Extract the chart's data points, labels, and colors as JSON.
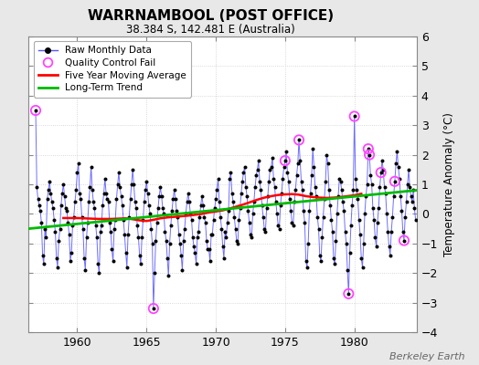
{
  "title": "WARRNAMBOOL (POST OFFICE)",
  "subtitle": "38.384 S, 142.481 E (Australia)",
  "ylabel": "Temperature Anomaly (°C)",
  "attribution": "Berkeley Earth",
  "xlim": [
    1956.5,
    1984.5
  ],
  "ylim": [
    -4,
    6
  ],
  "yticks": [
    -4,
    -3,
    -2,
    -1,
    0,
    1,
    2,
    3,
    4,
    5,
    6
  ],
  "xticks": [
    1960,
    1965,
    1970,
    1975,
    1980
  ],
  "bg_color": "#e8e8e8",
  "plot_bg_color": "#ffffff",
  "raw_color": "#5555ff",
  "ma_color": "#ff0000",
  "trend_color": "#00bb00",
  "qc_color": "#ff44ff",
  "raw_monthly": [
    [
      1957.0,
      3.5
    ],
    [
      1957.083,
      0.9
    ],
    [
      1957.167,
      0.5
    ],
    [
      1957.25,
      0.3
    ],
    [
      1957.333,
      0.1
    ],
    [
      1957.417,
      -0.3
    ],
    [
      1957.5,
      -1.4
    ],
    [
      1957.583,
      -1.7
    ],
    [
      1957.667,
      -0.5
    ],
    [
      1957.75,
      -0.8
    ],
    [
      1957.833,
      0.5
    ],
    [
      1957.917,
      0.8
    ],
    [
      1958.0,
      1.1
    ],
    [
      1958.083,
      0.7
    ],
    [
      1958.167,
      0.4
    ],
    [
      1958.25,
      0.2
    ],
    [
      1958.333,
      -0.2
    ],
    [
      1958.417,
      -0.6
    ],
    [
      1958.5,
      -1.5
    ],
    [
      1958.583,
      -1.8
    ],
    [
      1958.667,
      -0.9
    ],
    [
      1958.75,
      -0.5
    ],
    [
      1958.833,
      0.3
    ],
    [
      1958.917,
      0.7
    ],
    [
      1959.0,
      1.0
    ],
    [
      1959.083,
      0.6
    ],
    [
      1959.167,
      0.2
    ],
    [
      1959.25,
      0.1
    ],
    [
      1959.333,
      -0.3
    ],
    [
      1959.417,
      -0.7
    ],
    [
      1959.5,
      -1.6
    ],
    [
      1959.583,
      -1.3
    ],
    [
      1959.667,
      -0.4
    ],
    [
      1959.75,
      -0.1
    ],
    [
      1959.833,
      0.4
    ],
    [
      1959.917,
      0.8
    ],
    [
      1960.0,
      1.4
    ],
    [
      1960.083,
      1.7
    ],
    [
      1960.167,
      0.7
    ],
    [
      1960.25,
      0.5
    ],
    [
      1960.333,
      -0.1
    ],
    [
      1960.417,
      -0.5
    ],
    [
      1960.5,
      -1.5
    ],
    [
      1960.583,
      -1.9
    ],
    [
      1960.667,
      -0.8
    ],
    [
      1960.75,
      -0.3
    ],
    [
      1960.833,
      0.4
    ],
    [
      1960.917,
      0.9
    ],
    [
      1961.0,
      1.6
    ],
    [
      1961.083,
      0.8
    ],
    [
      1961.167,
      0.4
    ],
    [
      1961.25,
      0.2
    ],
    [
      1961.333,
      -0.4
    ],
    [
      1961.417,
      -0.8
    ],
    [
      1961.5,
      -1.7
    ],
    [
      1961.583,
      -2.0
    ],
    [
      1961.667,
      -0.6
    ],
    [
      1961.75,
      -0.4
    ],
    [
      1961.833,
      0.3
    ],
    [
      1961.917,
      0.7
    ],
    [
      1962.0,
      1.2
    ],
    [
      1962.083,
      0.7
    ],
    [
      1962.167,
      0.5
    ],
    [
      1962.25,
      0.4
    ],
    [
      1962.333,
      -0.3
    ],
    [
      1962.417,
      -0.6
    ],
    [
      1962.5,
      -1.2
    ],
    [
      1962.583,
      -1.6
    ],
    [
      1962.667,
      -0.5
    ],
    [
      1962.75,
      -0.2
    ],
    [
      1962.833,
      0.5
    ],
    [
      1962.917,
      1.0
    ],
    [
      1963.0,
      1.4
    ],
    [
      1963.083,
      0.9
    ],
    [
      1963.167,
      0.6
    ],
    [
      1963.25,
      0.3
    ],
    [
      1963.333,
      -0.2
    ],
    [
      1963.417,
      -0.7
    ],
    [
      1963.5,
      -1.3
    ],
    [
      1963.583,
      -1.8
    ],
    [
      1963.667,
      -0.7
    ],
    [
      1963.75,
      -0.1
    ],
    [
      1963.833,
      0.5
    ],
    [
      1963.917,
      1.0
    ],
    [
      1964.0,
      1.5
    ],
    [
      1964.083,
      1.0
    ],
    [
      1964.167,
      0.4
    ],
    [
      1964.25,
      0.2
    ],
    [
      1964.333,
      -0.4
    ],
    [
      1964.417,
      -0.8
    ],
    [
      1964.5,
      -1.4
    ],
    [
      1964.583,
      -1.7
    ],
    [
      1964.667,
      -0.8
    ],
    [
      1964.75,
      -0.2
    ],
    [
      1964.833,
      0.4
    ],
    [
      1964.917,
      0.8
    ],
    [
      1965.0,
      1.1
    ],
    [
      1965.083,
      0.7
    ],
    [
      1965.167,
      0.3
    ],
    [
      1965.25,
      0.0
    ],
    [
      1965.333,
      -0.5
    ],
    [
      1965.417,
      -1.0
    ],
    [
      1965.5,
      -3.2
    ],
    [
      1965.583,
      -2.0
    ],
    [
      1965.667,
      -0.9
    ],
    [
      1965.75,
      -0.3
    ],
    [
      1965.833,
      0.2
    ],
    [
      1965.917,
      0.6
    ],
    [
      1966.0,
      0.9
    ],
    [
      1966.083,
      0.6
    ],
    [
      1966.167,
      0.2
    ],
    [
      1966.25,
      0.0
    ],
    [
      1966.333,
      -0.6
    ],
    [
      1966.417,
      -0.9
    ],
    [
      1966.5,
      -1.5
    ],
    [
      1966.583,
      -2.1
    ],
    [
      1966.667,
      -1.0
    ],
    [
      1966.75,
      -0.4
    ],
    [
      1966.833,
      0.1
    ],
    [
      1966.917,
      0.5
    ],
    [
      1967.0,
      0.8
    ],
    [
      1967.083,
      0.5
    ],
    [
      1967.167,
      0.1
    ],
    [
      1967.25,
      -0.1
    ],
    [
      1967.333,
      -0.7
    ],
    [
      1967.417,
      -1.0
    ],
    [
      1967.5,
      -1.4
    ],
    [
      1967.583,
      -1.9
    ],
    [
      1967.667,
      -0.9
    ],
    [
      1967.75,
      -0.5
    ],
    [
      1967.833,
      0.0
    ],
    [
      1967.917,
      0.4
    ],
    [
      1968.0,
      0.7
    ],
    [
      1968.083,
      0.4
    ],
    [
      1968.167,
      0.0
    ],
    [
      1968.25,
      -0.2
    ],
    [
      1968.333,
      -0.8
    ],
    [
      1968.417,
      -1.1
    ],
    [
      1968.5,
      -1.3
    ],
    [
      1968.583,
      -1.7
    ],
    [
      1968.667,
      -0.8
    ],
    [
      1968.75,
      -0.6
    ],
    [
      1968.833,
      -0.1
    ],
    [
      1968.917,
      0.3
    ],
    [
      1969.0,
      0.6
    ],
    [
      1969.083,
      0.3
    ],
    [
      1969.167,
      -0.1
    ],
    [
      1969.25,
      -0.3
    ],
    [
      1969.333,
      -0.9
    ],
    [
      1969.417,
      -1.2
    ],
    [
      1969.5,
      -1.2
    ],
    [
      1969.583,
      -1.6
    ],
    [
      1969.667,
      -0.7
    ],
    [
      1969.75,
      -0.7
    ],
    [
      1969.833,
      -0.2
    ],
    [
      1969.917,
      0.2
    ],
    [
      1970.0,
      0.5
    ],
    [
      1970.083,
      0.8
    ],
    [
      1970.167,
      1.2
    ],
    [
      1970.25,
      0.4
    ],
    [
      1970.333,
      -0.1
    ],
    [
      1970.417,
      -0.5
    ],
    [
      1970.5,
      -1.1
    ],
    [
      1970.583,
      -1.5
    ],
    [
      1970.667,
      -0.6
    ],
    [
      1970.75,
      -0.8
    ],
    [
      1970.833,
      -0.3
    ],
    [
      1970.917,
      0.1
    ],
    [
      1971.0,
      1.2
    ],
    [
      1971.083,
      1.4
    ],
    [
      1971.167,
      0.7
    ],
    [
      1971.25,
      0.4
    ],
    [
      1971.333,
      -0.1
    ],
    [
      1971.417,
      -0.5
    ],
    [
      1971.5,
      -0.9
    ],
    [
      1971.583,
      -1.0
    ],
    [
      1971.667,
      -0.2
    ],
    [
      1971.75,
      0.2
    ],
    [
      1971.833,
      0.7
    ],
    [
      1971.917,
      1.1
    ],
    [
      1972.0,
      1.4
    ],
    [
      1972.083,
      1.6
    ],
    [
      1972.167,
      0.9
    ],
    [
      1972.25,
      0.6
    ],
    [
      1972.333,
      0.1
    ],
    [
      1972.417,
      -0.3
    ],
    [
      1972.5,
      -0.7
    ],
    [
      1972.583,
      -0.8
    ],
    [
      1972.667,
      0.0
    ],
    [
      1972.75,
      0.4
    ],
    [
      1972.833,
      0.9
    ],
    [
      1972.917,
      1.3
    ],
    [
      1973.0,
      1.5
    ],
    [
      1973.083,
      1.8
    ],
    [
      1973.167,
      1.1
    ],
    [
      1973.25,
      0.8
    ],
    [
      1973.333,
      0.3
    ],
    [
      1973.417,
      -0.1
    ],
    [
      1973.5,
      -0.5
    ],
    [
      1973.583,
      -0.6
    ],
    [
      1973.667,
      0.2
    ],
    [
      1973.75,
      0.6
    ],
    [
      1973.833,
      1.1
    ],
    [
      1973.917,
      1.5
    ],
    [
      1974.0,
      1.6
    ],
    [
      1974.083,
      1.9
    ],
    [
      1974.167,
      1.2
    ],
    [
      1974.25,
      0.9
    ],
    [
      1974.333,
      0.4
    ],
    [
      1974.417,
      0.0
    ],
    [
      1974.5,
      -0.4
    ],
    [
      1974.583,
      -0.5
    ],
    [
      1974.667,
      0.3
    ],
    [
      1974.75,
      0.7
    ],
    [
      1974.833,
      1.2
    ],
    [
      1974.917,
      1.6
    ],
    [
      1975.0,
      1.8
    ],
    [
      1975.083,
      2.1
    ],
    [
      1975.167,
      1.4
    ],
    [
      1975.25,
      1.1
    ],
    [
      1975.333,
      0.5
    ],
    [
      1975.417,
      0.1
    ],
    [
      1975.5,
      -0.3
    ],
    [
      1975.583,
      -0.4
    ],
    [
      1975.667,
      0.4
    ],
    [
      1975.75,
      0.8
    ],
    [
      1975.833,
      1.3
    ],
    [
      1975.917,
      1.7
    ],
    [
      1976.0,
      2.5
    ],
    [
      1976.083,
      1.8
    ],
    [
      1976.167,
      1.1
    ],
    [
      1976.25,
      0.8
    ],
    [
      1976.333,
      0.1
    ],
    [
      1976.417,
      -0.3
    ],
    [
      1976.5,
      -1.6
    ],
    [
      1976.583,
      -1.8
    ],
    [
      1976.667,
      -1.0
    ],
    [
      1976.75,
      0.1
    ],
    [
      1976.833,
      0.7
    ],
    [
      1976.917,
      1.3
    ],
    [
      1977.0,
      2.2
    ],
    [
      1977.083,
      1.6
    ],
    [
      1977.167,
      0.9
    ],
    [
      1977.25,
      0.6
    ],
    [
      1977.333,
      -0.1
    ],
    [
      1977.417,
      -0.5
    ],
    [
      1977.5,
      -1.4
    ],
    [
      1977.583,
      -1.6
    ],
    [
      1977.667,
      -0.8
    ],
    [
      1977.75,
      -0.1
    ],
    [
      1977.833,
      0.5
    ],
    [
      1977.917,
      1.1
    ],
    [
      1978.0,
      2.0
    ],
    [
      1978.083,
      1.7
    ],
    [
      1978.167,
      0.8
    ],
    [
      1978.25,
      0.3
    ],
    [
      1978.333,
      -0.2
    ],
    [
      1978.417,
      -0.6
    ],
    [
      1978.5,
      -1.5
    ],
    [
      1978.583,
      -1.7
    ],
    [
      1978.667,
      -0.9
    ],
    [
      1978.75,
      0.0
    ],
    [
      1978.833,
      0.6
    ],
    [
      1978.917,
      1.2
    ],
    [
      1979.0,
      1.1
    ],
    [
      1979.083,
      0.8
    ],
    [
      1979.167,
      0.4
    ],
    [
      1979.25,
      0.1
    ],
    [
      1979.333,
      -0.6
    ],
    [
      1979.417,
      -1.0
    ],
    [
      1979.5,
      -1.9
    ],
    [
      1979.583,
      -2.7
    ],
    [
      1979.667,
      -1.3
    ],
    [
      1979.75,
      -0.4
    ],
    [
      1979.833,
      0.3
    ],
    [
      1979.917,
      0.8
    ],
    [
      1980.0,
      3.3
    ],
    [
      1980.083,
      1.2
    ],
    [
      1980.167,
      0.8
    ],
    [
      1980.25,
      0.5
    ],
    [
      1980.333,
      -0.2
    ],
    [
      1980.417,
      -0.7
    ],
    [
      1980.5,
      -1.5
    ],
    [
      1980.583,
      -1.8
    ],
    [
      1980.667,
      -1.0
    ],
    [
      1980.75,
      0.0
    ],
    [
      1980.833,
      0.6
    ],
    [
      1980.917,
      1.0
    ],
    [
      1981.0,
      2.2
    ],
    [
      1981.083,
      2.0
    ],
    [
      1981.167,
      1.3
    ],
    [
      1981.25,
      1.0
    ],
    [
      1981.333,
      0.2
    ],
    [
      1981.417,
      -0.2
    ],
    [
      1981.5,
      -0.8
    ],
    [
      1981.583,
      -1.1
    ],
    [
      1981.667,
      -0.3
    ],
    [
      1981.75,
      0.2
    ],
    [
      1981.833,
      0.9
    ],
    [
      1981.917,
      1.4
    ],
    [
      1982.0,
      1.8
    ],
    [
      1982.083,
      1.5
    ],
    [
      1982.167,
      0.9
    ],
    [
      1982.25,
      0.7
    ],
    [
      1982.333,
      0.0
    ],
    [
      1982.417,
      -0.6
    ],
    [
      1982.5,
      -1.1
    ],
    [
      1982.583,
      -1.4
    ],
    [
      1982.667,
      -0.6
    ],
    [
      1982.75,
      -0.1
    ],
    [
      1982.833,
      0.6
    ],
    [
      1982.917,
      1.1
    ],
    [
      1983.0,
      1.7
    ],
    [
      1983.083,
      2.1
    ],
    [
      1983.167,
      1.6
    ],
    [
      1983.25,
      1.2
    ],
    [
      1983.333,
      0.6
    ],
    [
      1983.417,
      0.1
    ],
    [
      1983.5,
      -0.6
    ],
    [
      1983.583,
      -0.9
    ],
    [
      1983.667,
      -0.1
    ],
    [
      1983.75,
      0.4
    ],
    [
      1983.833,
      1.0
    ],
    [
      1983.917,
      1.5
    ],
    [
      1984.0,
      0.9
    ],
    [
      1984.083,
      0.6
    ],
    [
      1984.167,
      0.4
    ],
    [
      1984.25,
      0.8
    ],
    [
      1984.333,
      0.2
    ],
    [
      1984.417,
      -0.2
    ]
  ],
  "qc_fail_points": [
    [
      1957.0,
      3.5
    ],
    [
      1965.5,
      -3.2
    ],
    [
      1975.0,
      1.8
    ],
    [
      1976.0,
      2.5
    ],
    [
      1979.583,
      -2.7
    ],
    [
      1980.0,
      3.3
    ],
    [
      1981.0,
      2.2
    ],
    [
      1981.083,
      2.0
    ],
    [
      1981.917,
      1.4
    ],
    [
      1982.917,
      1.1
    ],
    [
      1983.583,
      -0.9
    ]
  ],
  "moving_avg": [
    [
      1959.0,
      -0.14
    ],
    [
      1959.5,
      -0.14
    ],
    [
      1960.0,
      -0.14
    ],
    [
      1960.5,
      -0.15
    ],
    [
      1961.0,
      -0.16
    ],
    [
      1961.5,
      -0.17
    ],
    [
      1962.0,
      -0.17
    ],
    [
      1962.5,
      -0.17
    ],
    [
      1963.0,
      -0.16
    ],
    [
      1963.5,
      -0.15
    ],
    [
      1964.0,
      -0.18
    ],
    [
      1964.5,
      -0.22
    ],
    [
      1965.0,
      -0.24
    ],
    [
      1965.5,
      -0.2
    ],
    [
      1966.0,
      -0.15
    ],
    [
      1966.5,
      -0.12
    ],
    [
      1967.0,
      -0.1
    ],
    [
      1967.5,
      -0.08
    ],
    [
      1968.0,
      -0.06
    ],
    [
      1968.5,
      -0.03
    ],
    [
      1969.0,
      0.0
    ],
    [
      1969.5,
      0.05
    ],
    [
      1970.0,
      0.08
    ],
    [
      1970.5,
      0.12
    ],
    [
      1971.0,
      0.18
    ],
    [
      1971.5,
      0.25
    ],
    [
      1972.0,
      0.32
    ],
    [
      1972.5,
      0.4
    ],
    [
      1973.0,
      0.48
    ],
    [
      1973.5,
      0.55
    ],
    [
      1974.0,
      0.6
    ],
    [
      1974.5,
      0.64
    ],
    [
      1975.0,
      0.66
    ],
    [
      1975.5,
      0.67
    ],
    [
      1976.0,
      0.65
    ],
    [
      1976.5,
      0.6
    ],
    [
      1977.0,
      0.57
    ],
    [
      1977.5,
      0.55
    ],
    [
      1978.0,
      0.54
    ],
    [
      1978.5,
      0.55
    ],
    [
      1979.0,
      0.57
    ],
    [
      1979.5,
      0.6
    ],
    [
      1980.0,
      0.63
    ],
    [
      1980.5,
      0.68
    ]
  ],
  "trend_line": [
    [
      1956.5,
      -0.5
    ],
    [
      1984.5,
      0.8
    ]
  ]
}
